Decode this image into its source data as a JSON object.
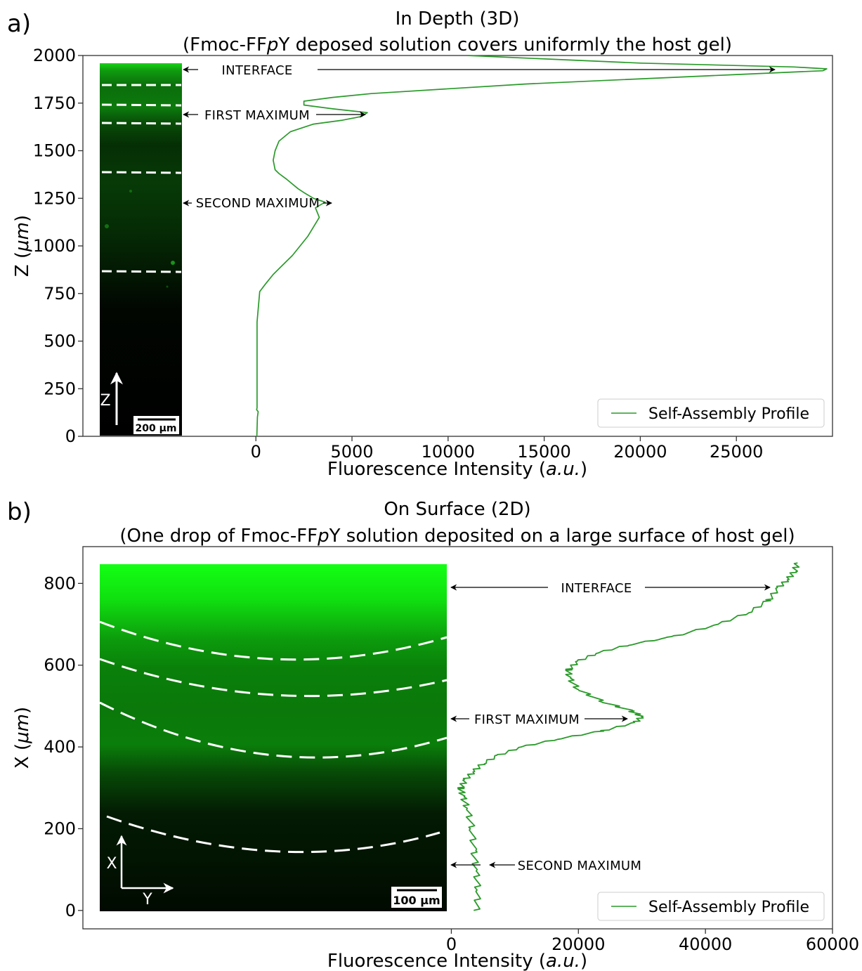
{
  "chart_data": [
    {
      "panel_label": "a)",
      "type": "line",
      "title": "In Depth (3D)",
      "subtitle": "(Fmoc-FFpY deposed solution covers uniformly the host gel)",
      "xlabel": "Fluorescence Intensity (a.u.)",
      "ylabel": "Z (μm)",
      "xlim": [
        -9000,
        30000
      ],
      "ylim": [
        0,
        2000
      ],
      "xticks": [
        0,
        5000,
        10000,
        15000,
        20000,
        25000
      ],
      "yticks": [
        0,
        250,
        500,
        750,
        1000,
        1250,
        1500,
        1750,
        2000
      ],
      "grid": false,
      "legend": {
        "position": "bottom-right",
        "entries": [
          "Self-Assembly Profile"
        ]
      },
      "series": [
        {
          "name": "Self-Assembly Profile",
          "color": "#2a9a2a",
          "y": [
            0,
            100,
            130,
            140,
            150,
            300,
            600,
            760,
            800,
            850,
            900,
            950,
            1000,
            1050,
            1100,
            1150,
            1200,
            1230,
            1250,
            1280,
            1300,
            1350,
            1380,
            1400,
            1450,
            1500,
            1550,
            1600,
            1640,
            1660,
            1680,
            1700,
            1720,
            1740,
            1760,
            1780,
            1800,
            1850,
            1900,
            1920,
            1930,
            1940,
            1960,
            2000
          ],
          "x": [
            50,
            80,
            120,
            40,
            60,
            60,
            60,
            200,
            500,
            900,
            1400,
            1900,
            2300,
            2700,
            3000,
            3300,
            3100,
            3600,
            3000,
            2500,
            2200,
            1600,
            1200,
            1000,
            900,
            1000,
            1200,
            1800,
            3000,
            4500,
            5500,
            5800,
            4000,
            2500,
            2500,
            4000,
            6000,
            14000,
            25000,
            29500,
            29700,
            28000,
            20000,
            11000
          ]
        }
      ],
      "annotations": [
        "INTERFACE",
        "FIRST MAXIMUM",
        "SECOND MAXIMUM"
      ],
      "scale_bar": "200 μm",
      "axis_arrow": "Z"
    },
    {
      "panel_label": "b)",
      "type": "line",
      "title": "On Surface (2D)",
      "subtitle": "(One drop of Fmoc-FFpY solution deposited on a large surface of host gel)",
      "xlabel": "Fluorescence Intensity (a.u.)",
      "ylabel": "X (μm)",
      "xlim": [
        -58000,
        60000
      ],
      "ylim": [
        -45,
        890
      ],
      "xticks": [
        0,
        20000,
        40000,
        60000
      ],
      "yticks": [
        0,
        200,
        400,
        600,
        800
      ],
      "grid": false,
      "legend": {
        "position": "bottom-right",
        "entries": [
          "Self-Assembly Profile"
        ]
      },
      "series": [
        {
          "name": "Self-Assembly Profile",
          "color": "#2a9a2a",
          "y": [
            0,
            50,
            100,
            150,
            200,
            250,
            280,
            300,
            320,
            340,
            360,
            380,
            400,
            420,
            440,
            460,
            475,
            490,
            510,
            540,
            570,
            590,
            610,
            630,
            650,
            670,
            700,
            730,
            760,
            790,
            810,
            830,
            850
          ],
          "x": [
            4000,
            4200,
            3900,
            3500,
            3300,
            2500,
            1800,
            1500,
            2200,
            3500,
            5000,
            7500,
            11000,
            17000,
            24000,
            29000,
            30000,
            28000,
            24000,
            20000,
            18500,
            18500,
            20000,
            23000,
            28000,
            35000,
            42000,
            47000,
            50000,
            51500,
            53000,
            54000,
            54500
          ]
        }
      ],
      "annotations": [
        "INTERFACE",
        "FIRST MAXIMUM",
        "SECOND MAXIMUM"
      ],
      "scale_bar": "100 μm",
      "axis_arrows": [
        "X",
        "Y"
      ]
    }
  ]
}
